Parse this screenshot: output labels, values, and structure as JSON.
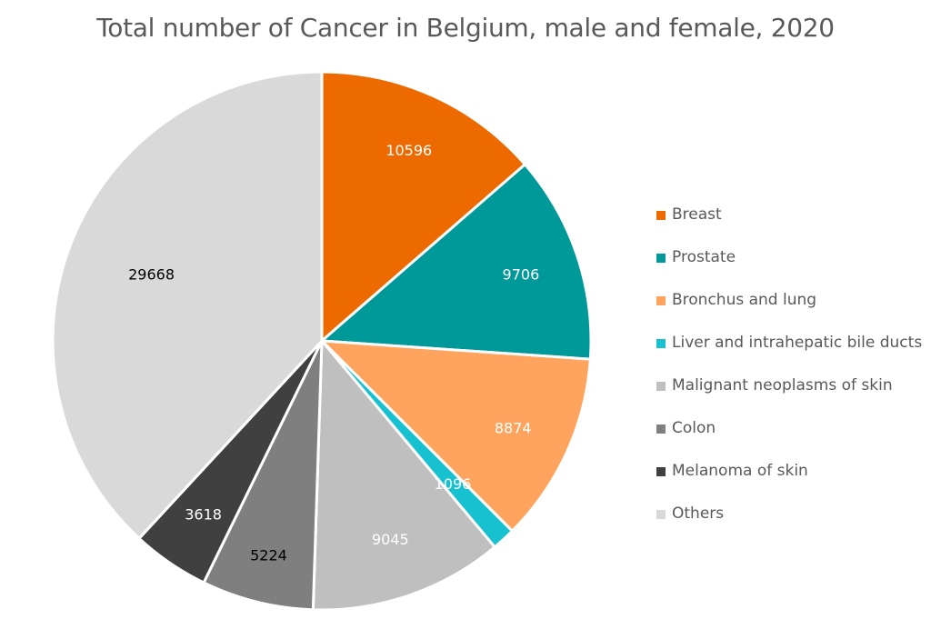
{
  "chart_data": {
    "type": "pie",
    "title": "Total number of Cancer in Belgium, male and female, 2020",
    "slices": [
      {
        "name": "Breast",
        "value": 10596,
        "color": "#ED6A00",
        "label_color": "#ffffff"
      },
      {
        "name": "Prostate",
        "value": 9706,
        "color": "#009999",
        "label_color": "#ffffff"
      },
      {
        "name": "Bronchus and lung",
        "value": 8874,
        "color": "#FFA45F",
        "label_color": "#ffffff"
      },
      {
        "name": "Liver and intrahepatic bile ducts",
        "value": 1096,
        "color": "#17C1CF",
        "label_color": "#ffffff"
      },
      {
        "name": "Malignant neoplasms of skin",
        "value": 9045,
        "color": "#BFBFBF",
        "label_color": "#ffffff"
      },
      {
        "name": "Colon",
        "value": 5224,
        "color": "#7F7F7F",
        "label_color": "#000000"
      },
      {
        "name": "Melanoma of skin",
        "value": 3618,
        "color": "#404040",
        "label_color": "#ffffff"
      },
      {
        "name": "Others",
        "value": 29668,
        "color": "#D9D9D9",
        "label_color": "#000000"
      }
    ],
    "legend_position": "right"
  }
}
